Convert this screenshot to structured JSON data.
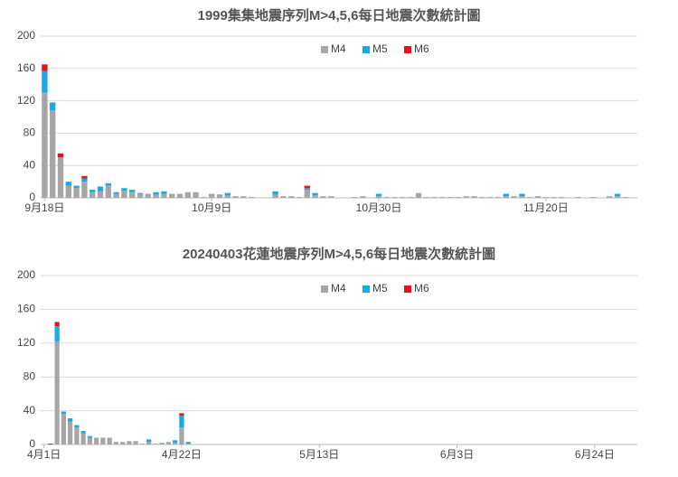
{
  "chart_data": [
    {
      "type": "bar",
      "stacked": true,
      "title": "1999集集地震序列M>4,5,6每日地震次數統計圖",
      "categories": [
        "9月18日",
        null,
        null,
        null,
        null,
        null,
        null,
        null,
        null,
        null,
        null,
        null,
        null,
        null,
        null,
        null,
        null,
        null,
        null,
        null,
        null,
        "10月9日",
        null,
        null,
        null,
        null,
        null,
        null,
        null,
        null,
        null,
        null,
        null,
        null,
        null,
        null,
        null,
        null,
        null,
        null,
        null,
        null,
        "10月30日",
        null,
        null,
        null,
        null,
        null,
        null,
        null,
        null,
        null,
        null,
        null,
        null,
        null,
        null,
        null,
        null,
        null,
        null,
        null,
        null,
        "11月20日",
        null,
        null,
        null,
        null,
        null,
        null,
        null,
        null,
        null,
        null,
        null
      ],
      "series": [
        {
          "name": "M4",
          "color": "#a6a6a6",
          "values": [
            130,
            108,
            50,
            15,
            12,
            20,
            7,
            8,
            15,
            5,
            9,
            7,
            5,
            5,
            4,
            5,
            5,
            5,
            7,
            7,
            1,
            5,
            3,
            3,
            2,
            2,
            1,
            0,
            0,
            4,
            2,
            2,
            1,
            10,
            3,
            2,
            2,
            0,
            0,
            1,
            2,
            0,
            2,
            1,
            1,
            1,
            1,
            6,
            1,
            1,
            1,
            1,
            1,
            2,
            2,
            1,
            1,
            1,
            2,
            2,
            2,
            1,
            2,
            1,
            1,
            1,
            0,
            1,
            0,
            1,
            0,
            2,
            2,
            1,
            0
          ]
        },
        {
          "name": "M5",
          "color": "#1ba9e1",
          "values": [
            27,
            10,
            0,
            5,
            3,
            4,
            3,
            6,
            3,
            2,
            3,
            3,
            1,
            0,
            3,
            3,
            0,
            0,
            0,
            0,
            0,
            0,
            1,
            3,
            0,
            0,
            0,
            0,
            0,
            4,
            0,
            0,
            0,
            2,
            3,
            0,
            0,
            0,
            0,
            0,
            0,
            0,
            3,
            0,
            0,
            0,
            0,
            0,
            0,
            0,
            0,
            0,
            0,
            0,
            0,
            0,
            0,
            0,
            3,
            0,
            3,
            0,
            0,
            0,
            0,
            0,
            0,
            0,
            0,
            0,
            0,
            0,
            3,
            0,
            0
          ]
        },
        {
          "name": "M6",
          "color": "#e3141c",
          "values": [
            8,
            0,
            5,
            0,
            0,
            3,
            0,
            0,
            0,
            0,
            0,
            0,
            0,
            0,
            0,
            0,
            0,
            0,
            0,
            0,
            0,
            0,
            0,
            0,
            0,
            0,
            0,
            0,
            0,
            0,
            0,
            0,
            0,
            3,
            0,
            0,
            0,
            0,
            0,
            0,
            0,
            0,
            0,
            0,
            0,
            0,
            0,
            0,
            0,
            0,
            0,
            0,
            0,
            0,
            0,
            0,
            0,
            0,
            0,
            0,
            0,
            0,
            0,
            0,
            0,
            0,
            0,
            0,
            0,
            0,
            0,
            0,
            0,
            0,
            0
          ]
        }
      ],
      "ylim": [
        0,
        200
      ],
      "yticks": [
        0,
        40,
        80,
        120,
        160,
        200
      ],
      "grid": true,
      "legend": "upper-center"
    },
    {
      "type": "bar",
      "stacked": true,
      "title": "20240403花蓮地震序列M>4,5,6每日地震次數統計圖",
      "categories": [
        "4月1日",
        null,
        null,
        null,
        null,
        null,
        null,
        null,
        null,
        null,
        null,
        null,
        null,
        null,
        null,
        null,
        null,
        null,
        null,
        null,
        null,
        "4月22日",
        null,
        null,
        null,
        null,
        null,
        null,
        null,
        null,
        null,
        null,
        null,
        null,
        null,
        null,
        null,
        null,
        null,
        null,
        null,
        null,
        "5月13日",
        null,
        null,
        null,
        null,
        null,
        null,
        null,
        null,
        null,
        null,
        null,
        null,
        null,
        null,
        null,
        null,
        null,
        null,
        null,
        null,
        "6月3日",
        null,
        null,
        null,
        null,
        null,
        null,
        null,
        null,
        null,
        null,
        null,
        null,
        null,
        null,
        null,
        null,
        null,
        null,
        null,
        null,
        "6月24日",
        null,
        null,
        null,
        null,
        null,
        null
      ],
      "series": [
        {
          "name": "M4",
          "color": "#a6a6a6",
          "values": [
            0,
            0,
            122,
            36,
            27,
            20,
            13,
            8,
            8,
            8,
            8,
            3,
            3,
            4,
            4,
            1,
            3,
            1,
            2,
            3,
            2,
            20,
            1,
            0,
            0,
            0,
            0,
            0,
            0,
            0,
            0,
            0,
            0,
            0,
            0,
            0,
            0,
            0,
            0,
            0,
            0,
            0,
            0,
            0,
            0,
            0,
            0,
            0,
            0,
            0,
            0,
            0,
            0,
            0,
            0,
            0,
            0,
            0,
            0,
            0,
            0,
            0,
            0,
            0,
            0,
            0,
            0,
            0,
            0,
            0,
            0,
            0,
            0,
            0,
            0,
            0,
            0,
            0,
            0,
            0,
            0,
            0,
            0,
            0,
            0,
            0,
            0,
            0,
            0,
            0,
            0
          ]
        },
        {
          "name": "M5",
          "color": "#1ba9e1",
          "values": [
            0,
            0,
            18,
            3,
            4,
            3,
            3,
            2,
            0,
            0,
            0,
            0,
            0,
            0,
            0,
            0,
            3,
            0,
            0,
            0,
            3,
            14,
            2,
            0,
            0,
            0,
            0,
            0,
            0,
            0,
            0,
            0,
            0,
            0,
            0,
            0,
            0,
            0,
            0,
            0,
            0,
            0,
            0,
            0,
            0,
            0,
            0,
            0,
            0,
            0,
            0,
            0,
            0,
            0,
            0,
            0,
            0,
            0,
            0,
            0,
            0,
            0,
            0,
            0,
            0,
            0,
            0,
            0,
            0,
            0,
            0,
            0,
            0,
            0,
            0,
            0,
            0,
            0,
            0,
            0,
            0,
            0,
            0,
            0,
            0,
            0,
            0,
            0,
            0,
            0,
            0
          ]
        },
        {
          "name": "M6",
          "color": "#e3141c",
          "values": [
            0,
            1,
            5,
            0,
            0,
            0,
            0,
            0,
            0,
            0,
            0,
            0,
            0,
            0,
            0,
            0,
            0,
            0,
            0,
            0,
            0,
            3,
            0,
            0,
            0,
            0,
            0,
            0,
            0,
            0,
            0,
            0,
            0,
            0,
            0,
            0,
            0,
            0,
            0,
            0,
            0,
            0,
            0,
            0,
            0,
            0,
            0,
            0,
            0,
            0,
            0,
            0,
            0,
            0,
            0,
            0,
            0,
            0,
            0,
            0,
            0,
            0,
            0,
            0,
            0,
            0,
            0,
            0,
            0,
            0,
            0,
            0,
            0,
            0,
            0,
            0,
            0,
            0,
            0,
            0,
            0,
            0,
            0,
            0,
            0,
            0,
            0,
            0,
            0,
            0,
            0
          ]
        }
      ],
      "ylim": [
        0,
        200
      ],
      "yticks": [
        0,
        40,
        80,
        120,
        160,
        200
      ],
      "grid": true,
      "legend": "upper-center"
    }
  ]
}
